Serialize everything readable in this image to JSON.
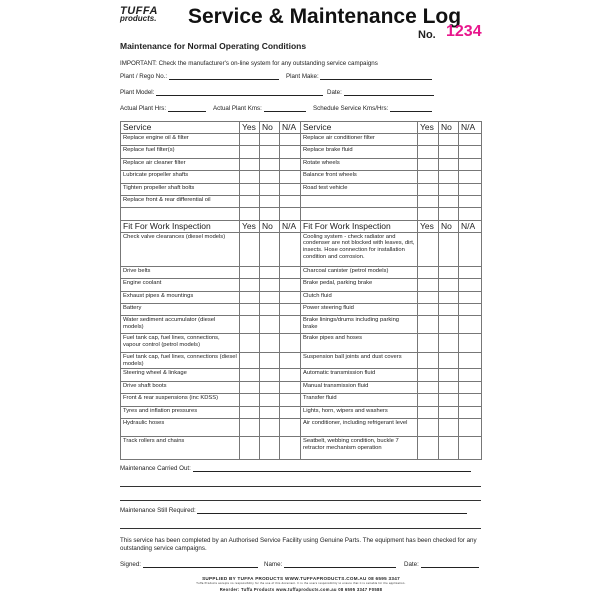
{
  "header": {
    "logo_line1": "TUFFA",
    "logo_line2": "products.",
    "title": "Service & Maintenance Log",
    "no_label": "No.",
    "no_value": "1234",
    "no_color": "#e8168c"
  },
  "subtitle": "Maintenance for Normal Operating Conditions",
  "important": "IMPORTANT: Check the manufacturer's on-line system for any outstanding service campaigns",
  "fields": {
    "plant_rego": "Plant / Rego No.:",
    "plant_make": "Plant Make:",
    "plant_model": "Plant Model:",
    "date": "Date:",
    "actual_hrs": "Actual Plant Hrs:",
    "actual_kms": "Actual Plant Kms:",
    "schedule": "Schedule Service Kms/Hrs:"
  },
  "columns": {
    "yes": "Yes",
    "no": "No",
    "na": "N/A"
  },
  "service": {
    "heading": "Service",
    "left": [
      "Replace engine oil & filter",
      "Replace fuel filter(s)",
      "Replace air cleaner filter",
      "Lubricate propeller shafts",
      "Tighten propeller shaft bolts",
      "Replace front & rear differential oil",
      ""
    ],
    "right": [
      "Replace air conditioner filter",
      "Replace brake fluid",
      "Rotate wheels",
      "Balance front wheels",
      "Road test vehicle",
      "",
      ""
    ]
  },
  "inspection": {
    "heading": "Fit For Work Inspection",
    "left": [
      "Check valve clearances (diesel models)",
      "Drive belts",
      "Engine coolant",
      "Exhaust pipes & mountings",
      "Battery",
      "Water sediment accumulator (diesel models)",
      "Fuel tank cap, fuel lines, connections, vapour control (petrol models)",
      "Fuel tank cap, fuel lines, connections (diesel models)",
      "Steering wheel & linkage",
      "Drive shaft boots",
      "Front & rear suspensions (inc KDSS)",
      "Tyres and inflation pressures",
      "Hydraulic hoses",
      "Track rollers and chains"
    ],
    "right": [
      "Cooling system - check radiator and condenser are not blocked with leaves, dirt, insects. Hose connection for installation condition and corrosion.",
      "Charcoal canister (petrol models)",
      "Brake pedal, parking brake",
      "Clutch fluid",
      "Power steering fluid",
      "Brake linings/drums including parking brake",
      "Brake pipes and hoses",
      "Suspension ball joints and dust covers",
      "Automatic transmission fluid",
      "Manual transmission fluid",
      "Transfer fluid",
      "Lights, horn, wipers and washers",
      "Air conditioner, including refrigerant level",
      "Seatbelt, webbing condition, buckle 7 retractor mechanism operation"
    ]
  },
  "maintenance_carried_out": "Maintenance Carried Out:",
  "maintenance_still_required": "Maintenance Still Required:",
  "declaration": "This service has been completed by an Authorised Service Facility using Genuine Parts. The equipment has been checked for any outstanding service campaigns.",
  "signoff": {
    "signed": "Signed:",
    "name": "Name:",
    "date": "Date:"
  },
  "footer": {
    "line1": "SUPPLIED BY TUFFA PRODUCTS   WWW.TUFFAPRODUCTS.COM.AU   08 6595 3347",
    "line2": "Tuffa Products accepts no responsibility for the use of this document. It is the users responsibility to ensure that it is suitable for the application.",
    "line3": "Reorder: Tuffa Products www.tuffaproducts.com.au 08 6595 3347 F0588"
  }
}
